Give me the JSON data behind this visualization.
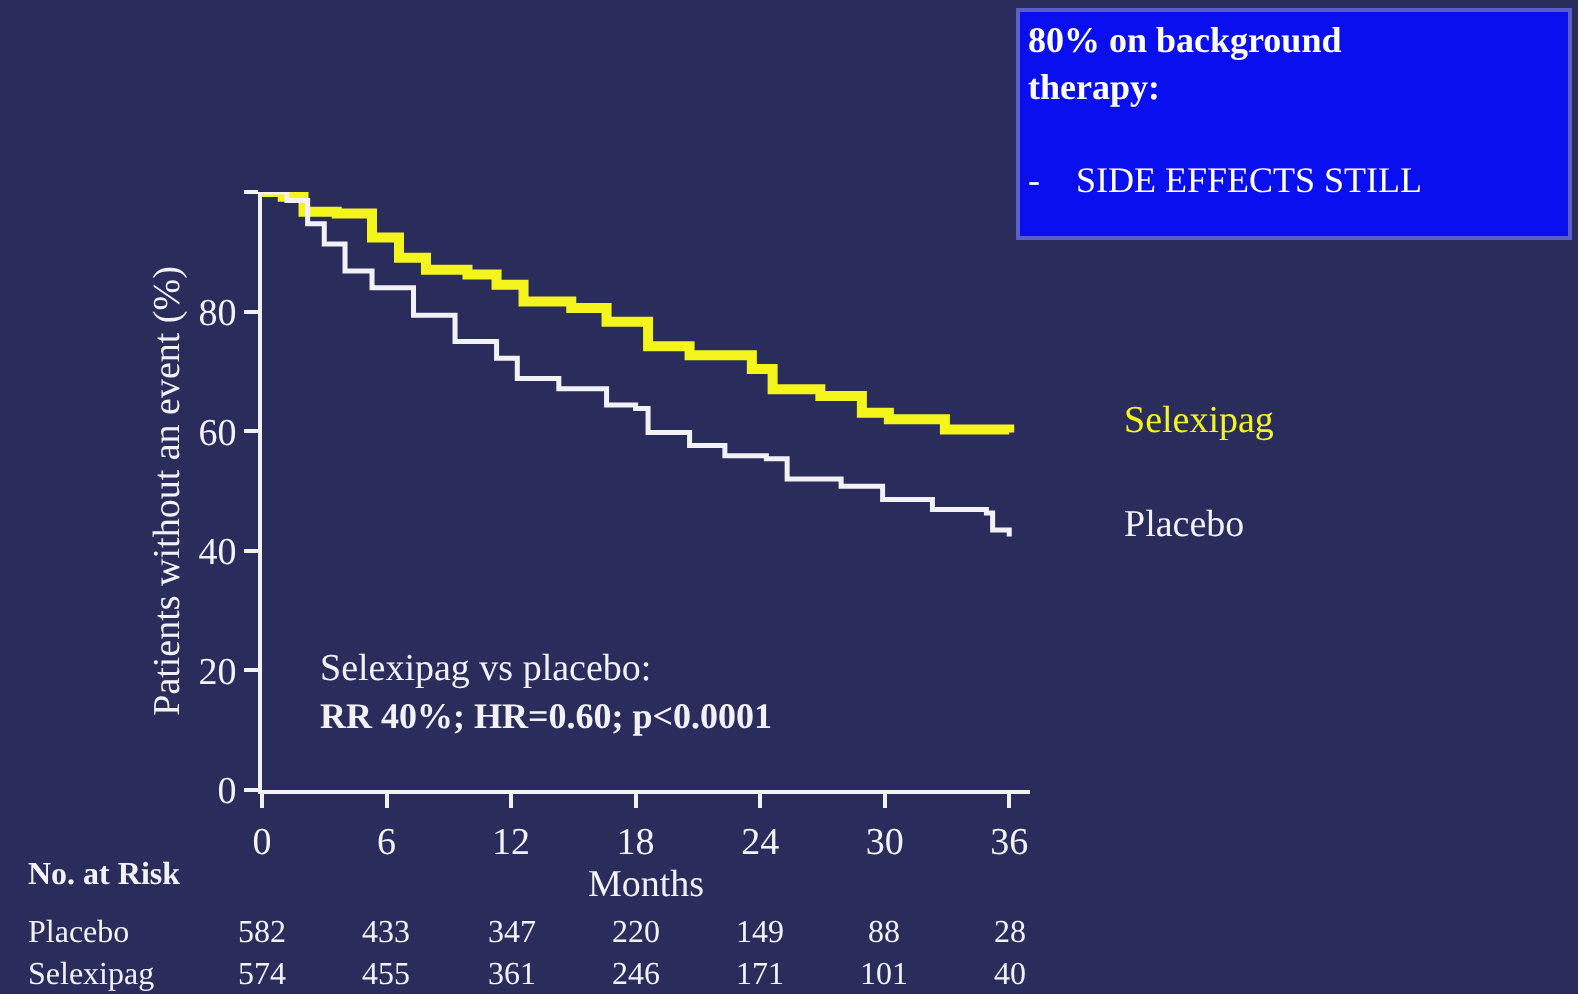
{
  "chart_data": {
    "type": "step",
    "xlabel": "Months",
    "ylabel": "Patients without an event (%)",
    "xlim": [
      0,
      37
    ],
    "ylim": [
      0,
      100
    ],
    "xticks": [
      0,
      6,
      12,
      18,
      24,
      30,
      36
    ],
    "yticks": [
      0,
      20,
      40,
      60,
      80,
      {
        "value": 100,
        "label": null
      }
    ],
    "grid": false,
    "legend": false,
    "marker": "none",
    "line_style": "solid",
    "series": [
      {
        "name": "Selexipag",
        "color": "#f5f51e",
        "x": [
          0,
          1,
          2,
          3.6,
          5.3,
          6.6,
          7.9,
          9.9,
          11.3,
          12.6,
          14.9,
          16.6,
          18.6,
          20.6,
          23.6,
          24.6,
          26.9,
          28.9,
          30.2,
          32.9,
          36
        ],
        "values": [
          100,
          99.2,
          96.7,
          96.4,
          92.4,
          89,
          87,
          86.2,
          84.5,
          81.7,
          80.6,
          78.3,
          74.2,
          72.7,
          70.4,
          67,
          65.9,
          63.1,
          62,
          60.3,
          59.8
        ]
      },
      {
        "name": "Placebo",
        "color": "#f2f2f6",
        "x": [
          0,
          1.2,
          2.2,
          3,
          4,
          5.3,
          7.3,
          9.3,
          11.3,
          12.3,
          14.3,
          16.6,
          18,
          18.6,
          20.6,
          22.3,
          24.3,
          25.3,
          27.9,
          29.9,
          32.3,
          34.9,
          35.2,
          36
        ],
        "values": [
          100,
          98.6,
          94.7,
          91.3,
          86.8,
          84,
          79.4,
          75,
          72.2,
          68.8,
          67.1,
          64.4,
          63.8,
          59.8,
          57.6,
          55.9,
          55.4,
          52,
          50.8,
          48.6,
          46.9,
          46.3,
          43.5,
          42.4
        ]
      }
    ],
    "annotations": [
      "80% on background therapy:",
      "-    SIDE EFFECTS STILL",
      "Selexipag vs placebo:",
      "RR 40%; HR=0.60; p<0.0001",
      "No. at Risk",
      "Placebo",
      "582",
      "433",
      "347",
      "220",
      "149",
      "88",
      "28",
      "Selexipag",
      "574",
      "455",
      "361",
      "246",
      "171",
      "101",
      "40"
    ]
  }
}
